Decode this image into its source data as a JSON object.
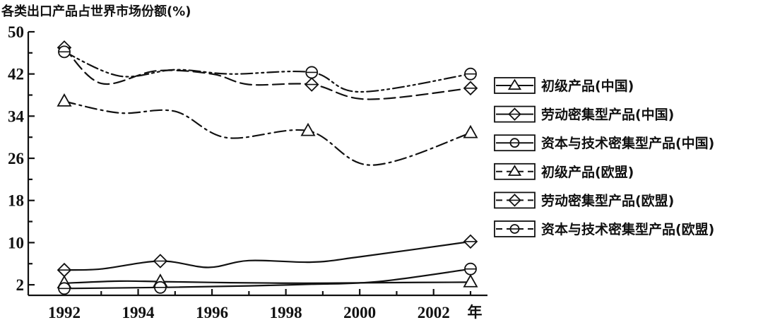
{
  "chart_data": {
    "type": "line",
    "ylabel": "各类出口产品占世界市场份额(%)",
    "x_unit": "年",
    "xlim": [
      1992,
      2003
    ],
    "ylim": [
      0,
      50
    ],
    "x_ticks": [
      1992,
      1994,
      1996,
      1998,
      2000,
      2002
    ],
    "y_ticks": [
      2,
      10,
      18,
      26,
      34,
      42,
      50
    ],
    "grid": false,
    "legend_position": "right",
    "series": [
      {
        "name": "初级产品(中国)",
        "marker": "triangle",
        "dash": "solid",
        "x": [
          1992,
          1993.5,
          1994.6,
          1996.5,
          1998.5,
          2000.5,
          2003
        ],
        "y": [
          2.3,
          2.7,
          2.6,
          2.4,
          2.3,
          2.4,
          2.5
        ],
        "marker_x": [
          1992,
          1994.6,
          2003
        ],
        "marker_y": [
          2.3,
          2.6,
          2.5
        ]
      },
      {
        "name": "劳动密集型产品(中国)",
        "marker": "diamond",
        "dash": "solid",
        "x": [
          1992,
          1993,
          1994.6,
          1995.9,
          1997,
          1998.7,
          2000,
          2003
        ],
        "y": [
          4.8,
          5.0,
          6.5,
          5.3,
          6.6,
          6.3,
          7.3,
          10.2
        ],
        "marker_x": [
          1992,
          1994.6,
          2003
        ],
        "marker_y": [
          4.8,
          6.5,
          10.2
        ]
      },
      {
        "name": "资本与技术密集型产品(中国)",
        "marker": "circle",
        "dash": "solid",
        "x": [
          1992,
          1994.6,
          1997,
          1998.7,
          2000.5,
          2003
        ],
        "y": [
          1.3,
          1.5,
          1.8,
          2.1,
          2.6,
          5.0
        ],
        "marker_x": [
          1992,
          1994.6,
          2003
        ],
        "marker_y": [
          1.3,
          1.5,
          5.0
        ]
      },
      {
        "name": "初级产品(欧盟)",
        "marker": "triangle",
        "dash": "dashdot",
        "x": [
          1992,
          1993.5,
          1995,
          1996.4,
          1998.6,
          2000.3,
          2003
        ],
        "y": [
          36.8,
          34.6,
          34.9,
          29.9,
          31.2,
          24.7,
          30.8
        ],
        "marker_x": [
          1992,
          1998.6,
          2003
        ],
        "marker_y": [
          36.8,
          31.2,
          30.8
        ]
      },
      {
        "name": "劳动密集型产品(欧盟)",
        "marker": "diamond",
        "dash": "longdash",
        "x": [
          1992,
          1993,
          1994.5,
          1996,
          1997,
          1998.7,
          2000.2,
          2003
        ],
        "y": [
          47.0,
          40.2,
          42.6,
          42.0,
          40.0,
          40.0,
          37.2,
          39.3
        ],
        "marker_x": [
          1992,
          1998.7,
          2003
        ],
        "marker_y": [
          47.0,
          40.0,
          39.3
        ]
      },
      {
        "name": "资本与技术密集型产品(欧盟)",
        "marker": "circle",
        "dash": "dashdotdot",
        "x": [
          1992,
          1993.5,
          1995,
          1996.5,
          1998.7,
          2000,
          2003
        ],
        "y": [
          46.2,
          41.6,
          42.8,
          42.0,
          42.3,
          38.6,
          42.0
        ],
        "marker_x": [
          1992,
          1998.7,
          2003
        ],
        "marker_y": [
          46.2,
          42.3,
          42.0
        ]
      }
    ]
  }
}
